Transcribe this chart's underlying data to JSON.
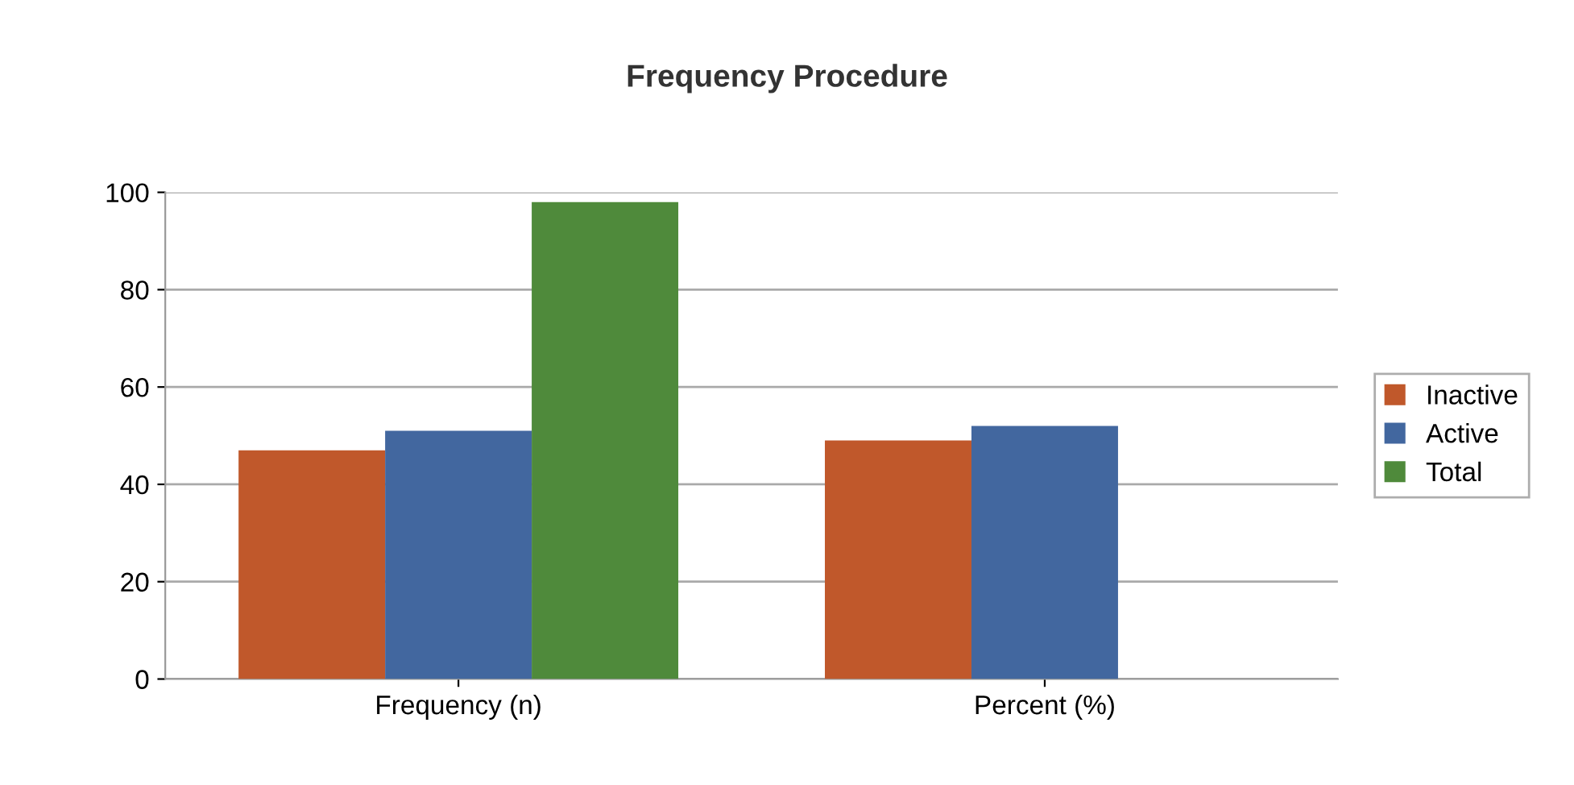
{
  "chart_data": {
    "type": "bar",
    "title": "Frequency Procedure",
    "categories": [
      "Frequency (n)",
      "Percent (%)"
    ],
    "series": [
      {
        "name": "Inactive",
        "color": "#c0582b",
        "values": [
          47,
          49
        ]
      },
      {
        "name": "Active",
        "color": "#42679f",
        "values": [
          51,
          52
        ]
      },
      {
        "name": "Total",
        "color": "#4f8a3b",
        "values": [
          98,
          null
        ]
      }
    ],
    "ylim": [
      0,
      100
    ],
    "yticks": [
      0,
      20,
      40,
      60,
      80,
      100
    ],
    "grid": "y",
    "legend": "right"
  }
}
